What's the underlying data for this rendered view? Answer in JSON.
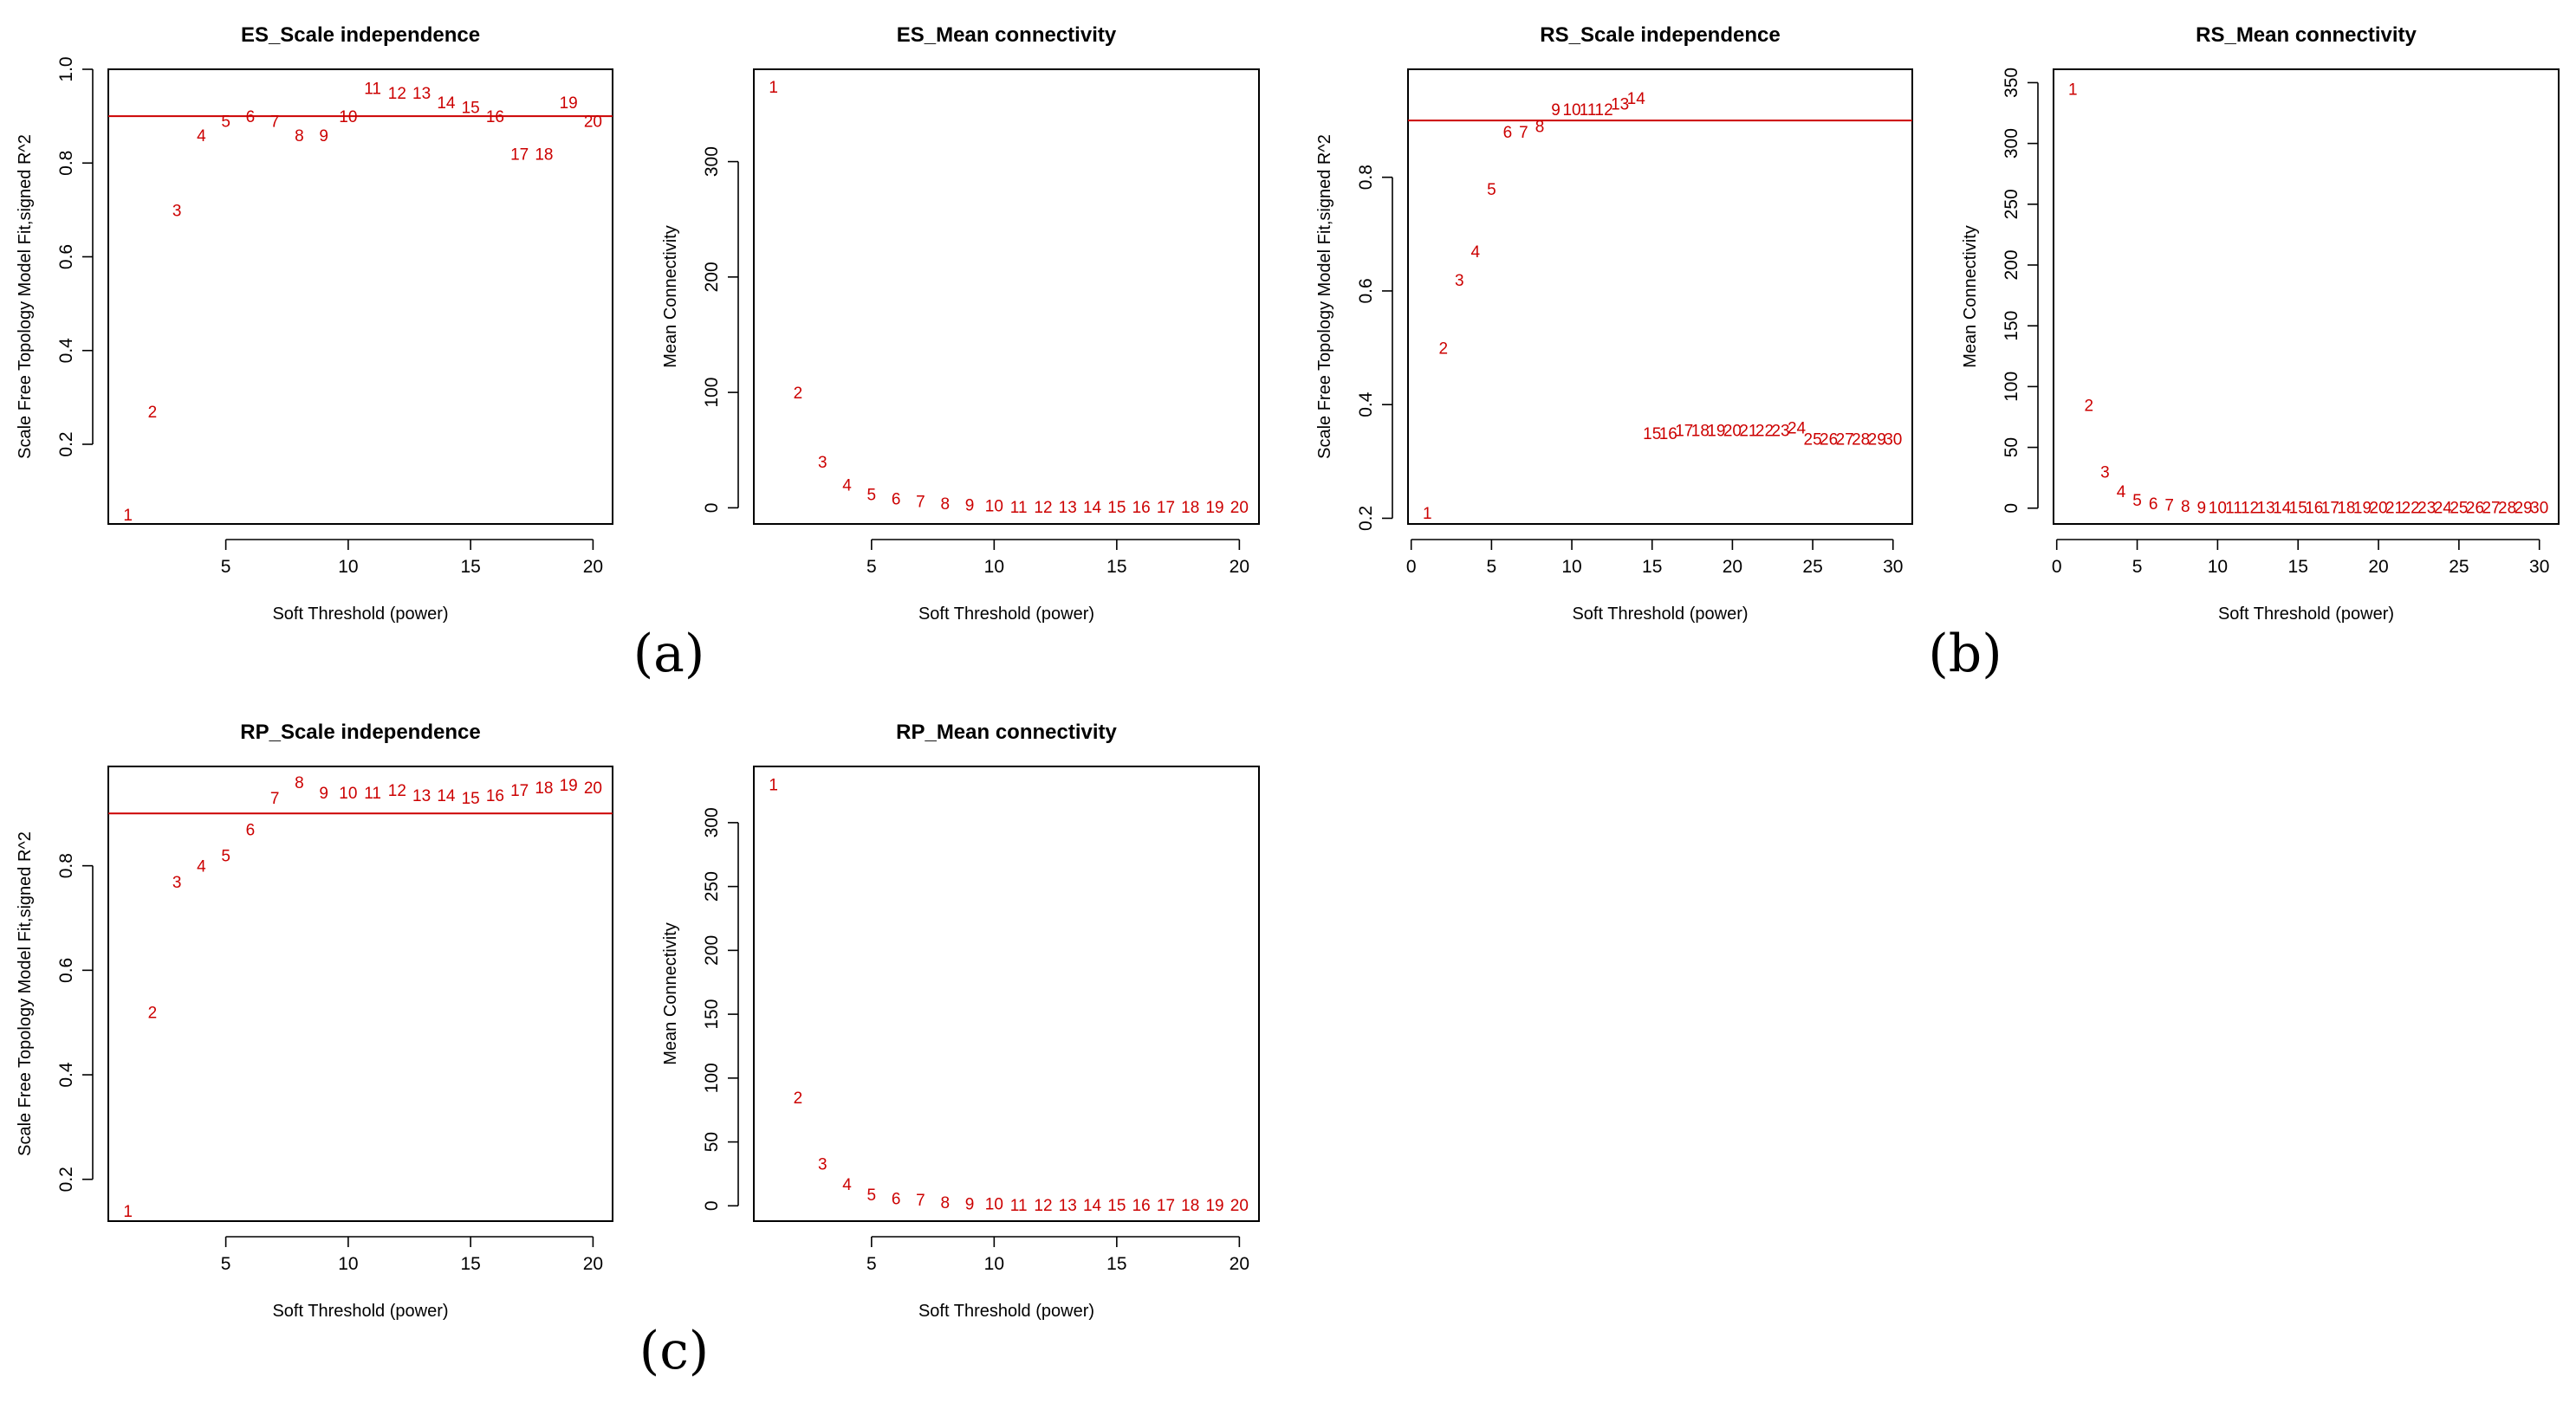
{
  "accent_color": "#cc0000",
  "panel_labels": [
    "(a)",
    "(b)",
    "(c)"
  ],
  "chart_data": [
    {
      "type": "scatter",
      "title": "ES_Scale independence",
      "xlabel": "Soft Threshold (power)",
      "ylabel": "Scale Free Topology Model Fit,signed R^2",
      "xlim": [
        0.2,
        20.8
      ],
      "ylim": [
        0.03,
        1.0
      ],
      "xticks": [
        5,
        10,
        15,
        20
      ],
      "yticks": [
        0.2,
        0.4,
        0.6,
        0.8,
        1.0
      ],
      "ytick_labels": [
        "0.2",
        "0.4",
        "0.6",
        "0.8",
        "1.0"
      ],
      "hline": 0.9,
      "x": [
        1,
        2,
        3,
        4,
        5,
        6,
        7,
        8,
        9,
        10,
        11,
        12,
        13,
        14,
        15,
        16,
        17,
        18,
        19,
        20
      ],
      "values": [
        0.05,
        0.27,
        0.7,
        0.86,
        0.89,
        0.9,
        0.89,
        0.86,
        0.86,
        0.9,
        0.96,
        0.95,
        0.95,
        0.93,
        0.92,
        0.9,
        0.82,
        0.82,
        0.93,
        0.89
      ],
      "labels": [
        "1",
        "2",
        "3",
        "4",
        "5",
        "6",
        "7",
        "8",
        "9",
        "10",
        "11",
        "12",
        "13",
        "14",
        "15",
        "16",
        "17",
        "18",
        "19",
        "20"
      ]
    },
    {
      "type": "scatter",
      "title": "ES_Mean connectivity",
      "xlabel": "Soft Threshold (power)",
      "ylabel": "Mean Connectivity",
      "xlim": [
        0.2,
        20.8
      ],
      "ylim": [
        -14,
        380
      ],
      "xticks": [
        5,
        10,
        15,
        20
      ],
      "yticks": [
        0,
        100,
        200,
        300
      ],
      "ytick_labels": [
        "0",
        "100",
        "200",
        "300"
      ],
      "x": [
        1,
        2,
        3,
        4,
        5,
        6,
        7,
        8,
        9,
        10,
        11,
        12,
        13,
        14,
        15,
        16,
        17,
        18,
        19,
        20
      ],
      "values": [
        365,
        100,
        40,
        20,
        12,
        8,
        6,
        4,
        3,
        2,
        1,
        1,
        1,
        1,
        1,
        1,
        1,
        1,
        1,
        1
      ],
      "labels": [
        "1",
        "2",
        "3",
        "4",
        "5",
        "6",
        "7",
        "8",
        "9",
        "10",
        "11",
        "12",
        "13",
        "14",
        "15",
        "16",
        "17",
        "18",
        "19",
        "20"
      ]
    },
    {
      "type": "scatter",
      "title": "RS_Scale independence",
      "xlabel": "Soft Threshold (power)",
      "ylabel": "Scale Free Topology Model Fit,signed R^2",
      "xlim": [
        -0.2,
        31.2
      ],
      "ylim": [
        0.19,
        0.99
      ],
      "xticks": [
        0,
        5,
        10,
        15,
        20,
        25,
        30
      ],
      "yticks": [
        0.2,
        0.4,
        0.6,
        0.8
      ],
      "ytick_labels": [
        "0.2",
        "0.4",
        "0.6",
        "0.8"
      ],
      "hline": 0.9,
      "x": [
        1,
        2,
        3,
        4,
        5,
        6,
        7,
        8,
        9,
        10,
        11,
        12,
        13,
        14,
        15,
        16,
        17,
        18,
        19,
        20,
        21,
        22,
        23,
        24,
        25,
        26,
        27,
        28,
        29,
        30
      ],
      "values": [
        0.21,
        0.5,
        0.62,
        0.67,
        0.78,
        0.88,
        0.88,
        0.89,
        0.92,
        0.92,
        0.92,
        0.92,
        0.93,
        0.94,
        0.35,
        0.35,
        0.355,
        0.355,
        0.355,
        0.355,
        0.355,
        0.355,
        0.355,
        0.36,
        0.34,
        0.34,
        0.34,
        0.34,
        0.34,
        0.34
      ],
      "labels": [
        "1",
        "2",
        "3",
        "4",
        "5",
        "6",
        "7",
        "8",
        "9",
        "10",
        "11",
        "12",
        "13",
        "14",
        "15",
        "16",
        "17",
        "18",
        "19",
        "20",
        "21",
        "22",
        "23",
        "24",
        "25",
        "26",
        "27",
        "28",
        "29",
        "30"
      ]
    },
    {
      "type": "scatter",
      "title": "RS_Mean connectivity",
      "xlabel": "Soft Threshold (power)",
      "ylabel": "Mean Connectivity",
      "xlim": [
        -0.2,
        31.2
      ],
      "ylim": [
        -13,
        361
      ],
      "xticks": [
        0,
        5,
        10,
        15,
        20,
        25,
        30
      ],
      "yticks": [
        0,
        50,
        100,
        150,
        200,
        250,
        300,
        350
      ],
      "ytick_labels": [
        "0",
        "50",
        "100",
        "150",
        "200",
        "250",
        "300",
        "350"
      ],
      "x": [
        1,
        2,
        3,
        4,
        5,
        6,
        7,
        8,
        9,
        10,
        11,
        12,
        13,
        14,
        15,
        16,
        17,
        18,
        19,
        20,
        21,
        22,
        23,
        24,
        25,
        26,
        27,
        28,
        29,
        30
      ],
      "values": [
        345,
        85,
        30,
        14,
        7,
        4,
        3,
        2,
        1,
        1,
        1,
        1,
        1,
        1,
        1,
        1,
        1,
        1,
        1,
        1,
        1,
        1,
        1,
        1,
        1,
        1,
        1,
        1,
        1,
        1
      ],
      "labels": [
        "1",
        "2",
        "3",
        "4",
        "5",
        "6",
        "7",
        "8",
        "9",
        "10",
        "11",
        "12",
        "13",
        "14",
        "15",
        "16",
        "17",
        "18",
        "19",
        "20",
        "21",
        "22",
        "23",
        "24",
        "25",
        "26",
        "27",
        "28",
        "29",
        "30"
      ]
    },
    {
      "type": "scatter",
      "title": "RP_Scale independence",
      "xlabel": "Soft Threshold (power)",
      "ylabel": "Scale Free Topology Model Fit,signed R^2",
      "xlim": [
        0.2,
        20.8
      ],
      "ylim": [
        0.12,
        0.99
      ],
      "xticks": [
        5,
        10,
        15,
        20
      ],
      "yticks": [
        0.2,
        0.4,
        0.6,
        0.8
      ],
      "ytick_labels": [
        "0.2",
        "0.4",
        "0.6",
        "0.8"
      ],
      "hline": 0.9,
      "x": [
        1,
        2,
        3,
        4,
        5,
        6,
        7,
        8,
        9,
        10,
        11,
        12,
        13,
        14,
        15,
        16,
        17,
        18,
        19,
        20
      ],
      "values": [
        0.14,
        0.52,
        0.77,
        0.8,
        0.82,
        0.87,
        0.93,
        0.96,
        0.94,
        0.94,
        0.94,
        0.945,
        0.935,
        0.935,
        0.93,
        0.935,
        0.945,
        0.95,
        0.955,
        0.95
      ],
      "labels": [
        "1",
        "2",
        "3",
        "4",
        "5",
        "6",
        "7",
        "8",
        "9",
        "10",
        "11",
        "12",
        "13",
        "14",
        "15",
        "16",
        "17",
        "18",
        "19",
        "20"
      ]
    },
    {
      "type": "scatter",
      "title": "RP_Mean connectivity",
      "xlabel": "Soft Threshold (power)",
      "ylabel": "Mean Connectivity",
      "xlim": [
        0.2,
        20.8
      ],
      "ylim": [
        -12,
        344
      ],
      "xticks": [
        5,
        10,
        15,
        20
      ],
      "yticks": [
        0,
        50,
        100,
        150,
        200,
        250,
        300
      ],
      "ytick_labels": [
        "0",
        "50",
        "100",
        "150",
        "200",
        "250",
        "300"
      ],
      "x": [
        1,
        2,
        3,
        4,
        5,
        6,
        7,
        8,
        9,
        10,
        11,
        12,
        13,
        14,
        15,
        16,
        17,
        18,
        19,
        20
      ],
      "values": [
        330,
        85,
        33,
        17,
        9,
        6,
        5,
        3,
        2,
        2,
        1,
        1,
        1,
        1,
        1,
        1,
        1,
        1,
        1,
        1
      ],
      "labels": [
        "1",
        "2",
        "3",
        "4",
        "5",
        "6",
        "7",
        "8",
        "9",
        "10",
        "11",
        "12",
        "13",
        "14",
        "15",
        "16",
        "17",
        "18",
        "19",
        "20"
      ]
    }
  ]
}
